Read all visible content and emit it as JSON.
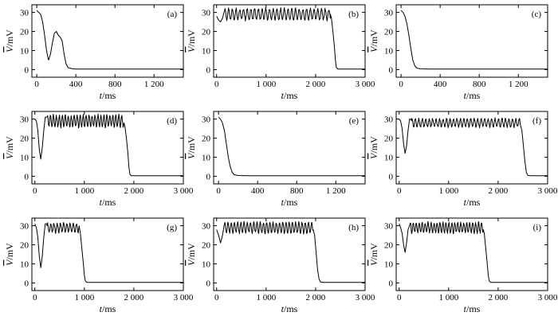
{
  "figure": {
    "y_axis_symbol": "V",
    "y_axis_unit": "/mV",
    "x_axis_symbol": "t",
    "x_axis_unit": "/ms"
  },
  "chart_data": [
    {
      "type": "line",
      "panel_label": "(a)",
      "xlim": [
        -50,
        1500
      ],
      "ylim": [
        -4,
        34
      ],
      "xticks": [
        0,
        400,
        800,
        1200
      ],
      "xtick_labels": [
        "0",
        "400",
        "800",
        "1 200"
      ],
      "yticks": [
        0,
        10,
        20,
        30
      ],
      "ytick_labels": [
        "0",
        "10",
        "20",
        "30"
      ],
      "series": [
        {
          "x": [
            0,
            20,
            40,
            60,
            80,
            100,
            120,
            140,
            160,
            180,
            200,
            220,
            240,
            260,
            280,
            300,
            320,
            360,
            400,
            600,
            800,
            1000,
            1200,
            1500
          ],
          "y": [
            31,
            30,
            29,
            25,
            18,
            10,
            5,
            8,
            14,
            19,
            20,
            18,
            17,
            15,
            8,
            3,
            1,
            0.5,
            0.3,
            0.3,
            0.3,
            0.3,
            0.3,
            0.3
          ]
        }
      ]
    },
    {
      "type": "line",
      "panel_label": "(b)",
      "xlim": [
        -60,
        3000
      ],
      "ylim": [
        -4,
        34
      ],
      "xticks": [
        0,
        1000,
        2000,
        3000
      ],
      "xtick_labels": [
        "0",
        "1 000",
        "2 000",
        "3 000"
      ],
      "yticks": [
        0,
        10,
        20,
        30
      ],
      "ytick_labels": [
        "0",
        "10",
        "20",
        "30"
      ],
      "series": [
        {
          "x": [
            0,
            40,
            80,
            120,
            150,
            2300,
            2320,
            2350,
            2380,
            2400,
            2420,
            2450,
            2500,
            3000
          ],
          "y": [
            28,
            26,
            25,
            27,
            30,
            29,
            27,
            20,
            12,
            5,
            1,
            0.3,
            0.3,
            0.3
          ]
        }
      ]
    },
    {
      "type": "line",
      "panel_label": "(c)",
      "xlim": [
        -50,
        1500
      ],
      "ylim": [
        -4,
        34
      ],
      "xticks": [
        0,
        400,
        800,
        1200
      ],
      "xtick_labels": [
        "0",
        "400",
        "800",
        "1 200"
      ],
      "yticks": [
        0,
        10,
        20,
        30
      ],
      "ytick_labels": [
        "0",
        "10",
        "20",
        "30"
      ],
      "series": [
        {
          "x": [
            0,
            20,
            40,
            60,
            80,
            100,
            120,
            140,
            160,
            200,
            300,
            600,
            1000,
            1500
          ],
          "y": [
            31,
            30,
            28,
            24,
            18,
            11,
            5,
            2,
            0.8,
            0.4,
            0.3,
            0.3,
            0.3,
            0.3
          ]
        }
      ]
    },
    {
      "type": "line",
      "panel_label": "(d)",
      "xlim": [
        -60,
        3000
      ],
      "ylim": [
        -4,
        34
      ],
      "xticks": [
        0,
        1000,
        2000,
        3000
      ],
      "xtick_labels": [
        "0",
        "1 000",
        "2 000",
        "3 000"
      ],
      "yticks": [
        0,
        10,
        20,
        30
      ],
      "ytick_labels": [
        "0",
        "10",
        "20",
        "30"
      ],
      "series": [
        {
          "x": [
            0,
            30,
            60,
            90,
            120,
            150,
            180,
            210,
            240,
            1800,
            1820,
            1850,
            1880,
            1900,
            1920,
            1950,
            2000,
            3000
          ],
          "y": [
            30,
            29,
            24,
            14,
            9,
            15,
            24,
            31,
            31,
            28,
            26,
            20,
            12,
            5,
            1,
            0.3,
            0.3,
            0.3
          ]
        }
      ]
    },
    {
      "type": "line",
      "panel_label": "(e)",
      "xlim": [
        -50,
        1500
      ],
      "ylim": [
        -4,
        34
      ],
      "xticks": [
        0,
        400,
        800,
        1200
      ],
      "xtick_labels": [
        "0",
        "400",
        "800",
        "1 200"
      ],
      "yticks": [
        0,
        10,
        20,
        30
      ],
      "ytick_labels": [
        "0",
        "10",
        "20",
        "30"
      ],
      "series": [
        {
          "x": [
            0,
            20,
            40,
            60,
            80,
            100,
            120,
            140,
            160,
            200,
            300,
            600,
            1000,
            1500
          ],
          "y": [
            31,
            30,
            28,
            24,
            17,
            10,
            5,
            2,
            0.8,
            0.4,
            0.3,
            0.3,
            0.3,
            0.3
          ]
        }
      ]
    },
    {
      "type": "line",
      "panel_label": "(f)",
      "xlim": [
        -60,
        3000
      ],
      "ylim": [
        -4,
        34
      ],
      "xticks": [
        0,
        1000,
        2000,
        3000
      ],
      "xtick_labels": [
        "0",
        "1 000",
        "2 000",
        "3 000"
      ],
      "yticks": [
        0,
        10,
        20,
        30
      ],
      "ytick_labels": [
        "0",
        "10",
        "20",
        "30"
      ],
      "series": [
        {
          "x": [
            0,
            30,
            60,
            90,
            120,
            150,
            180,
            210,
            240,
            2450,
            2480,
            2510,
            2540,
            2570,
            2600,
            2650,
            3000
          ],
          "y": [
            30,
            29,
            25,
            17,
            12,
            16,
            24,
            30,
            30,
            27,
            24,
            16,
            8,
            2,
            0.5,
            0.3,
            0.3
          ]
        }
      ]
    },
    {
      "type": "line",
      "panel_label": "(g)",
      "xlim": [
        -60,
        3000
      ],
      "ylim": [
        -4,
        34
      ],
      "xticks": [
        0,
        1000,
        2000,
        3000
      ],
      "xtick_labels": [
        "0",
        "1 000",
        "2 000",
        "3 000"
      ],
      "yticks": [
        0,
        10,
        20,
        30
      ],
      "ytick_labels": [
        "0",
        "10",
        "20",
        "30"
      ],
      "series": [
        {
          "x": [
            0,
            30,
            60,
            90,
            120,
            150,
            180,
            210,
            240,
            900,
            920,
            950,
            980,
            1000,
            1020,
            1050,
            1100,
            3000
          ],
          "y": [
            31,
            29,
            24,
            14,
            8,
            14,
            24,
            31,
            31,
            29,
            26,
            18,
            10,
            4,
            1,
            0.3,
            0.3,
            0.3
          ]
        }
      ]
    },
    {
      "type": "line",
      "panel_label": "(h)",
      "xlim": [
        -60,
        3000
      ],
      "ylim": [
        -4,
        34
      ],
      "xticks": [
        0,
        1000,
        2000,
        3000
      ],
      "xtick_labels": [
        "0",
        "1 000",
        "2 000",
        "3 000"
      ],
      "yticks": [
        0,
        10,
        20,
        30
      ],
      "ytick_labels": [
        "0",
        "10",
        "20",
        "30"
      ],
      "series": [
        {
          "x": [
            0,
            40,
            80,
            120,
            150,
            1950,
            1980,
            2010,
            2040,
            2070,
            2100,
            2150,
            3000
          ],
          "y": [
            28,
            25,
            21,
            25,
            30,
            28,
            25,
            16,
            7,
            2,
            0.5,
            0.3,
            0.3
          ]
        }
      ]
    },
    {
      "type": "line",
      "panel_label": "(i)",
      "xlim": [
        -60,
        3000
      ],
      "ylim": [
        -4,
        34
      ],
      "xticks": [
        0,
        1000,
        2000,
        3000
      ],
      "xtick_labels": [
        "0",
        "1 000",
        "2 000",
        "3 000"
      ],
      "yticks": [
        0,
        10,
        20,
        30
      ],
      "ytick_labels": [
        "0",
        "10",
        "20",
        "30"
      ],
      "series": [
        {
          "x": [
            0,
            30,
            60,
            90,
            120,
            150,
            180,
            210,
            1700,
            1720,
            1750,
            1780,
            1800,
            1820,
            1850,
            1900,
            3000
          ],
          "y": [
            31,
            29,
            26,
            20,
            16,
            21,
            28,
            30,
            28,
            26,
            18,
            10,
            4,
            1,
            0.3,
            0.3,
            0.3
          ]
        }
      ]
    }
  ]
}
